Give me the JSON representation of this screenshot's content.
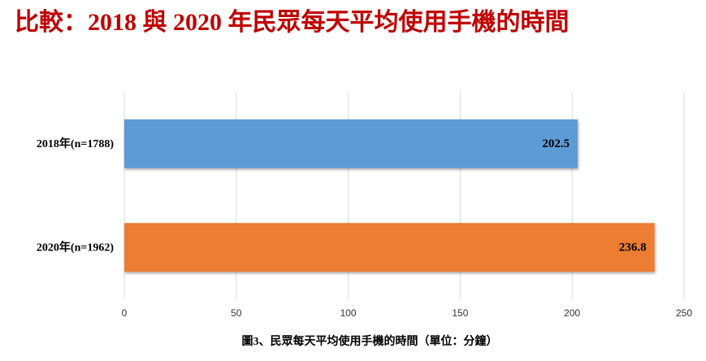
{
  "chart_data": {
    "type": "barh",
    "title": "比較：2018 與 2020 年民眾每天平均使用手機的時間",
    "caption": "圖3、民眾每天平均使用手機的時間（單位：分鐘）",
    "categories": [
      "2018年(n=1788)",
      "2020年(n=1962)"
    ],
    "values": [
      202.5,
      236.8
    ],
    "colors": [
      "#5b9bd5",
      "#ed7d31"
    ],
    "xlim": [
      0,
      250
    ],
    "xticks": [
      0,
      50,
      100,
      150,
      200,
      250
    ],
    "grid": true
  }
}
